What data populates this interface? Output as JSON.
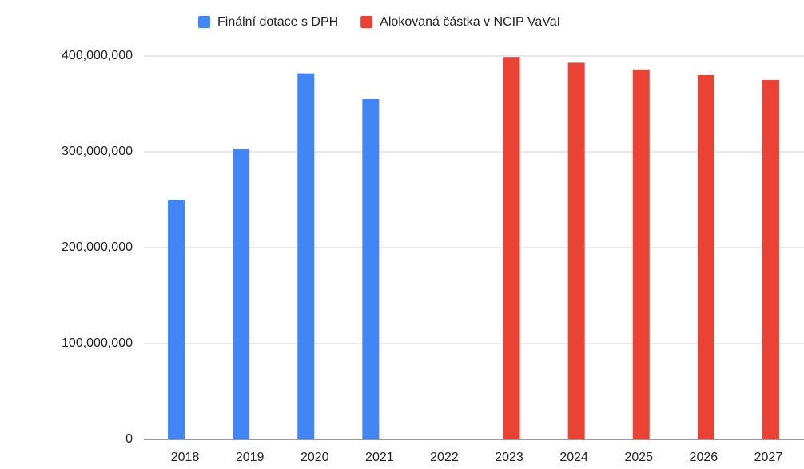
{
  "chart_data": {
    "type": "bar",
    "categories": [
      "2018",
      "2019",
      "2020",
      "2021",
      "2022",
      "2023",
      "2024",
      "2025",
      "2026",
      "2027"
    ],
    "series": [
      {
        "name": "Finální dotace s DPH",
        "color": "#4285f4",
        "values": [
          250000000,
          303000000,
          382000000,
          355000000,
          null,
          null,
          null,
          null,
          null,
          null
        ]
      },
      {
        "name": "Alokovaná částka v NCIP VaVaI",
        "color": "#ea4335",
        "values": [
          null,
          null,
          null,
          null,
          null,
          399000000,
          393000000,
          386000000,
          380000000,
          375000000
        ]
      }
    ],
    "ylim": [
      0,
      400000000
    ],
    "yticks": [
      0,
      {
        "value": 100000000,
        "label": "100,000,000"
      },
      {
        "value": 200000000,
        "label": "200,000,000"
      },
      {
        "value": 300000000,
        "label": "300,000,000"
      },
      {
        "value": 400000000,
        "label": "400,000,000"
      }
    ],
    "grid": true,
    "legend": "top"
  }
}
